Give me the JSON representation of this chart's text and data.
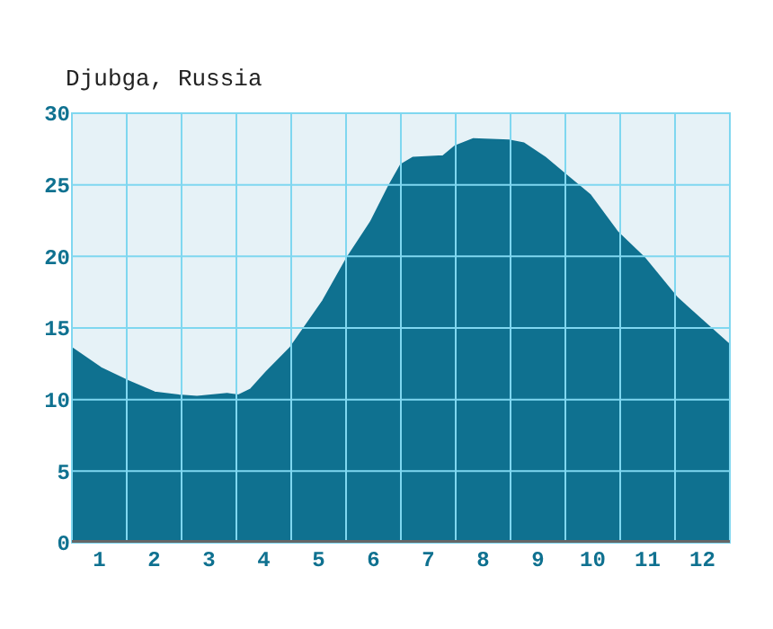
{
  "chart_data": {
    "type": "area",
    "title": "Djubga, Russia",
    "x": [
      0.5,
      1.03,
      1.52,
      2.01,
      2.45,
      2.78,
      3.33,
      3.54,
      3.76,
      4.04,
      4.48,
      5.08,
      5.52,
      5.95,
      6.28,
      6.5,
      6.72,
      7.27,
      7.49,
      7.82,
      8.47,
      8.74,
      9.13,
      9.57,
      9.95,
      10.45,
      10.94,
      11.54,
      12.09,
      12.5
    ],
    "series": [
      {
        "color": "#0f7190",
        "values": [
          13.6,
          12.2,
          11.3,
          10.5,
          10.3,
          10.2,
          10.4,
          10.3,
          10.7,
          11.9,
          13.6,
          16.9,
          19.9,
          22.4,
          24.9,
          26.4,
          26.9,
          27.0,
          27.7,
          28.2,
          28.1,
          27.9,
          26.9,
          25.5,
          24.3,
          21.7,
          19.9,
          17.1,
          15.2,
          13.8
        ]
      }
    ],
    "xlim": [
      0.5,
      12.5
    ],
    "xticks": [
      {
        "value": 1,
        "label": "1"
      },
      {
        "value": 1.5,
        "label": null
      },
      {
        "value": 2,
        "label": "2"
      },
      {
        "value": 2.5,
        "label": null
      },
      {
        "value": 3,
        "label": "3"
      },
      {
        "value": 3.5,
        "label": null
      },
      {
        "value": 4,
        "label": "4"
      },
      {
        "value": 4.5,
        "label": null
      },
      {
        "value": 5,
        "label": "5"
      },
      {
        "value": 5.5,
        "label": null
      },
      {
        "value": 6,
        "label": "6"
      },
      {
        "value": 6.5,
        "label": null
      },
      {
        "value": 7,
        "label": "7"
      },
      {
        "value": 7.5,
        "label": null
      },
      {
        "value": 8,
        "label": "8"
      },
      {
        "value": 8.5,
        "label": null
      },
      {
        "value": 9,
        "label": "9"
      },
      {
        "value": 9.5,
        "label": null
      },
      {
        "value": 10,
        "label": "10"
      },
      {
        "value": 10.5,
        "label": null
      },
      {
        "value": 11,
        "label": "11"
      },
      {
        "value": 11.5,
        "label": null
      },
      {
        "value": 12,
        "label": "12"
      }
    ],
    "ylim": [
      0,
      30
    ],
    "yticks": [
      0,
      5,
      10,
      15,
      20,
      25,
      30
    ],
    "grid": true
  }
}
